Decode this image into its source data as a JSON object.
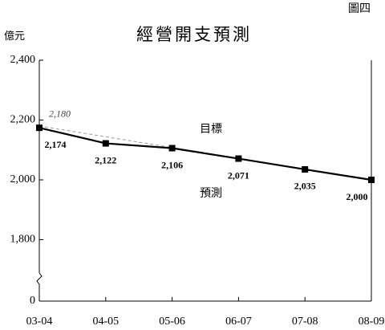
{
  "chart_data": {
    "type": "line",
    "figure_label": "圖四",
    "title": "經營開支預測",
    "y_label": "億元",
    "categories": [
      "03-04",
      "04-05",
      "05-06",
      "06-07",
      "07-08",
      "08-09"
    ],
    "series": [
      {
        "name": "目標",
        "color": "#999999",
        "dashed": true,
        "markers": false,
        "values": [
          2180,
          2144,
          2108,
          2072,
          2036,
          2000
        ],
        "value_labels": [
          "2,180",
          null,
          null,
          null,
          null,
          null
        ]
      },
      {
        "name": "預測",
        "color": "#000000",
        "dashed": false,
        "markers": true,
        "values": [
          2174,
          2122,
          2106,
          2071,
          2035,
          2000
        ],
        "value_labels": [
          "2,174",
          "2,122",
          "2,106",
          "2,071",
          "2,035",
          "2,000"
        ]
      }
    ],
    "ylim": [
      1600,
      2400
    ],
    "yticks": [
      0,
      {
        "value": 1800,
        "label": "1,800"
      },
      {
        "value": 2000,
        "label": "2,000"
      },
      {
        "value": 2200,
        "label": "2,200"
      },
      {
        "value": 2400,
        "label": "2,400"
      }
    ],
    "axis_break": true,
    "grid": false
  }
}
